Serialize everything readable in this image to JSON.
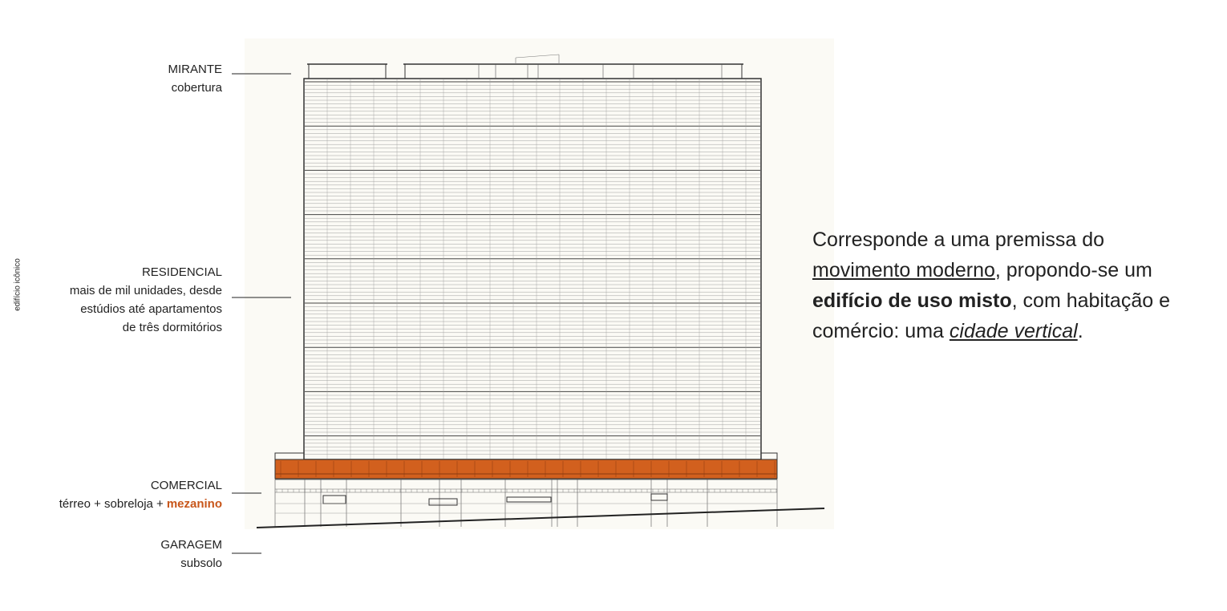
{
  "side_label": "edifício icônico",
  "labels": [
    {
      "title": "MIRANTE",
      "lines": [
        "cobertura"
      ]
    },
    {
      "title": "RESIDENCIAL",
      "lines": [
        "mais de mil unidades, desde",
        "estúdios até apartamentos",
        "de três dormitórios"
      ]
    },
    {
      "title": "COMERCIAL",
      "lines": [
        "térreo + sobreloja +"
      ],
      "highlight": "mezanino"
    },
    {
      "title": "GARAGEM",
      "lines": [
        "subsolo"
      ]
    }
  ],
  "paragraph": {
    "lines": [
      [
        {
          "text": "Corresponde a uma premissa do",
          "style": "plain"
        }
      ],
      [
        {
          "text": "movimento moderno",
          "style": "underline"
        },
        {
          "text": ", propondo-se um",
          "style": "plain"
        }
      ],
      [
        {
          "text": "edifício de uso misto",
          "style": "bold"
        },
        {
          "text": ", com habitação e",
          "style": "plain"
        }
      ],
      [
        {
          "text": "comércio: uma ",
          "style": "plain"
        },
        {
          "text": "cidade vertical",
          "style": "italic-underline"
        },
        {
          "text": ".",
          "style": "plain"
        }
      ]
    ]
  }
}
